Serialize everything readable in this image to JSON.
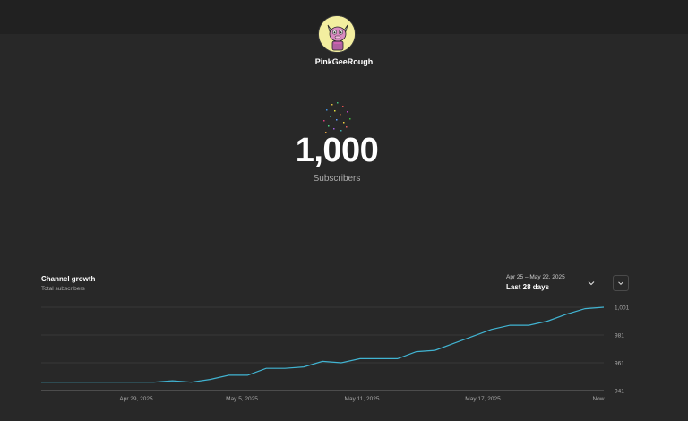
{
  "channel": {
    "name": "PinkGeeRough",
    "avatar_icon": "cow-avatar-icon"
  },
  "milestone": {
    "count": "1,000",
    "label": "Subscribers"
  },
  "chart_header": {
    "title": "Channel growth",
    "subtitle": "Total subscribers",
    "date_range": "Apr 25 – May 22, 2025",
    "preset": "Last 28 days"
  },
  "colors": {
    "background": "#282828",
    "line": "#41b4d2",
    "grid": "#3c3c3c"
  },
  "chart_data": {
    "type": "line",
    "title": "Channel growth",
    "xlabel": "",
    "ylabel": "",
    "x_ticks": [
      "Apr 29, 2025",
      "May 5, 2025",
      "May 11, 2025",
      "May 17, 2025",
      "Now"
    ],
    "y_ticks": [
      "941",
      "961",
      "981",
      "1,001"
    ],
    "ylim": [
      941,
      1001
    ],
    "grid": true,
    "series": [
      {
        "values": [
          947,
          947,
          947,
          947,
          947,
          947,
          947,
          948,
          947,
          949,
          952,
          952,
          957,
          957,
          958,
          962,
          961,
          964,
          964,
          964,
          969,
          970,
          975,
          980,
          985,
          988,
          988,
          991,
          996,
          1000,
          1001
        ]
      }
    ]
  }
}
